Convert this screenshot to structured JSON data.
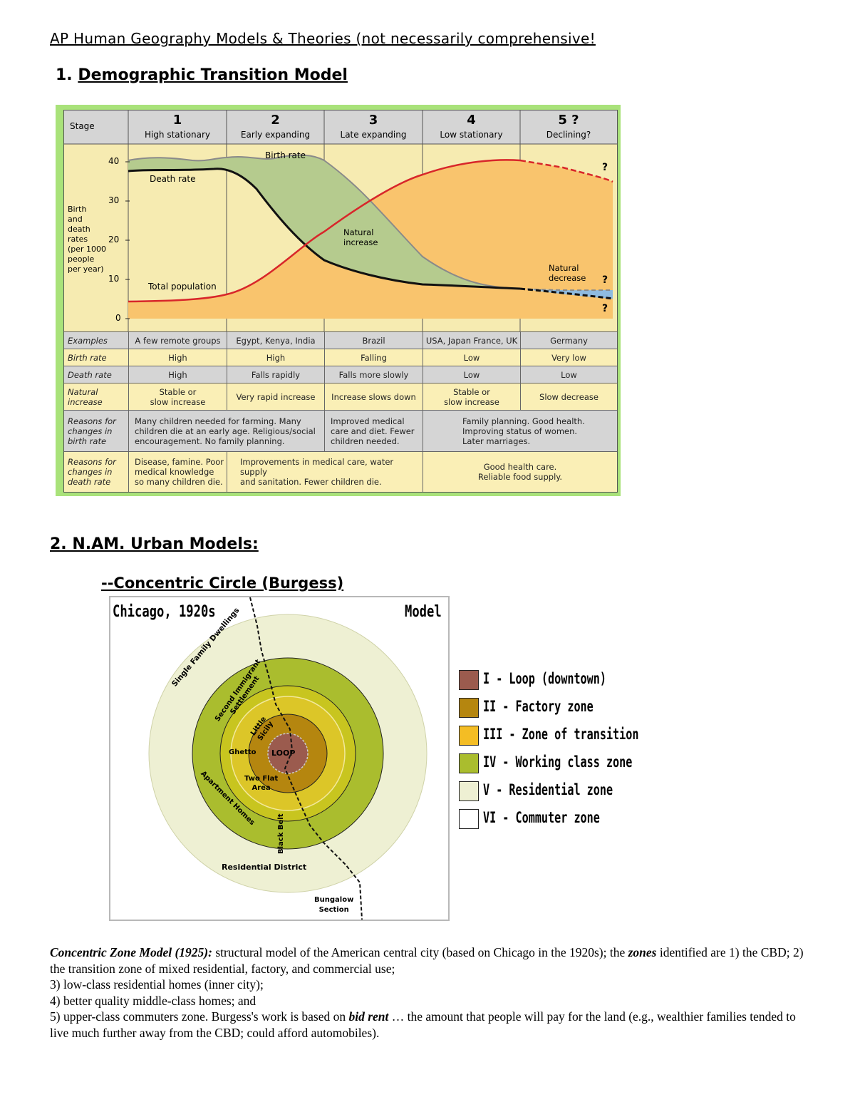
{
  "doc_title": "AP Human Geography Models & Theories (not necessarily comprehensive!",
  "section1": {
    "number": "1.",
    "title": "Demographic Transition Model"
  },
  "dtm": {
    "stage_header": "Stage",
    "stages": [
      {
        "num": "1",
        "name": "High stationary"
      },
      {
        "num": "2",
        "name": "Early expanding"
      },
      {
        "num": "3",
        "name": "Late expanding"
      },
      {
        "num": "4",
        "name": "Low stationary"
      },
      {
        "num": "5 ?",
        "name": "Declining?"
      }
    ],
    "y_axis_label": "Birth\nand\ndeath\nrates\n(per 1000\npeople\nper year)",
    "y_ticks": [
      "40",
      "30",
      "20",
      "10",
      "0"
    ],
    "curve_labels": {
      "birth_rate": "Birth rate",
      "death_rate": "Death rate",
      "total_population": "Total population",
      "natural_increase": "Natural\nincrease",
      "natural_decrease": "Natural\ndecrease",
      "question": "?"
    },
    "rows": [
      {
        "head": "Examples",
        "cells": [
          "A few remote groups",
          "Egypt, Kenya, India",
          "Brazil",
          "USA, Japan France, UK",
          "Germany"
        ]
      },
      {
        "head": "Birth rate",
        "cells": [
          "High",
          "High",
          "Falling",
          "Low",
          "Very low"
        ]
      },
      {
        "head": "Death rate",
        "cells": [
          "High",
          "Falls rapidly",
          "Falls more slowly",
          "Low",
          "Low"
        ]
      },
      {
        "head": "Natural\nincrease",
        "cells": [
          "Stable or\nslow increase",
          "Very rapid increase",
          "Increase slows down",
          "Stable or\nslow increase",
          "Slow decrease"
        ]
      }
    ],
    "reasons_birth": {
      "head": "Reasons for\nchanges in\nbirth rate",
      "stage12": "Many children needed for farming. Many\nchildren die at an early age. Religious/social\nencouragement. No family planning.",
      "stage3": "Improved medical\ncare and diet. Fewer\nchildren needed.",
      "stage45": "Family planning. Good health.\nImproving status of women.\nLater marriages."
    },
    "reasons_death": {
      "head": "Reasons for\nchanges in\ndeath rate",
      "stage1": "Disease, famine. Poor\nmedical knowledge\nso many children die.",
      "stage23": "Improvements in medical care, water supply\nand sanitation. Fewer children die.",
      "stage45": "Good health care.\nReliable food supply."
    }
  },
  "section2": {
    "title": "2. N.AM. Urban Models:"
  },
  "subsection": {
    "title": "--Concentric Circle (Burgess)"
  },
  "burgess": {
    "title_left": "Chicago, 1920s",
    "title_right": "Model",
    "ring_labels": {
      "single_family": "Single Family Dwellings",
      "second_immigrant": "Second Immigrant\nSettlement",
      "little_sicily": "Little\nSicily",
      "ghetto": "Ghetto",
      "loop": "LOOP",
      "two_flat": "Two Flat\nArea",
      "apartment": "Apartment Homes",
      "black_belt": "Black Belt",
      "residential_district": "Residential District",
      "bungalow": "Bungalow\nSection"
    },
    "legend": [
      {
        "label": "I - Loop (downtown)",
        "color": "#9b5b4e"
      },
      {
        "label": "II - Factory zone",
        "color": "#b5860f"
      },
      {
        "label": "III - Zone of transition",
        "color": "#f4bd24"
      },
      {
        "label": "IV - Working class zone",
        "color": "#aabd2e"
      },
      {
        "label": "V - Residential zone",
        "color": "#eef0d3"
      },
      {
        "label": "VI - Commuter zone",
        "color": "#ffffff"
      }
    ]
  },
  "description": {
    "lead": "Concentric Zone Model (1925):",
    "text1": " structural model of the American central city (based on Chicago in the 1920s); the ",
    "zones_word": "zones",
    "text2": " identified are 1) the CBD; 2) the transition zone of mixed residential, factory, and commercial use;",
    "line3": "3) low-class residential homes (inner city);",
    "line4": "4) better quality middle-class homes; and",
    "line5a": "5) upper-class commuters zone.  Burgess's work is based on ",
    "bid_rent": "bid rent",
    "line5b": " … the amount that people will pay for the land (e.g., wealthier families tended to live much further away from the CBD; could afford automobiles)."
  }
}
